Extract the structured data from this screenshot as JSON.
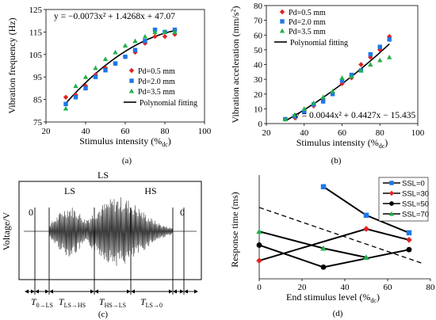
{
  "chart_data": [
    {
      "type": "scatter",
      "xlabel": "Stimulus intensity (%dc)",
      "ylabel": "Vibration frequency (Hz)",
      "xlim": [
        20,
        100
      ],
      "ylim": [
        75,
        125
      ],
      "xticks": [
        20,
        40,
        60,
        80,
        100
      ],
      "yticks": [
        75,
        85,
        95,
        105,
        115,
        125
      ],
      "equation": "y = −0.0073x² + 1.4268x + 47.07",
      "caption": "(a)",
      "legend_position": "center-right",
      "series": [
        {
          "name": "Pd=0.5 mm",
          "marker": "diamond",
          "color": "#e32222",
          "x": [
            30,
            35,
            40,
            45,
            50,
            55,
            60,
            65,
            70,
            75,
            80,
            85
          ],
          "y": [
            86,
            87,
            91,
            96,
            99,
            101,
            104,
            106,
            110,
            113,
            113,
            114
          ]
        },
        {
          "name": "Pd=2.0 mm",
          "marker": "square",
          "color": "#1f77e8",
          "x": [
            30,
            35,
            40,
            45,
            50,
            55,
            60,
            65,
            70,
            75,
            80,
            85
          ],
          "y": [
            83,
            86,
            90,
            95,
            98,
            101,
            104,
            107,
            111,
            116,
            115,
            116
          ]
        },
        {
          "name": "Pd=3.5 mm",
          "marker": "triangle",
          "color": "#22b14c",
          "x": [
            30,
            35,
            40,
            45,
            50,
            55,
            60,
            65,
            70,
            75,
            80,
            85
          ],
          "y": [
            81,
            91,
            95,
            99,
            103,
            106,
            109,
            111,
            113,
            115,
            115,
            115
          ]
        }
      ],
      "fit": {
        "name": "Polynomial fitting",
        "a": -0.0073,
        "b": 1.4268,
        "c": 47.07,
        "x_from": 30,
        "x_to": 85
      }
    },
    {
      "type": "scatter",
      "xlabel": "Stimulus intensity (%dc)",
      "ylabel": "Vibration acceleration (mm/s²)",
      "xlim": [
        20,
        100
      ],
      "ylim": [
        0,
        80
      ],
      "xticks": [
        20,
        40,
        60,
        80,
        100
      ],
      "yticks": [
        0,
        10,
        20,
        30,
        40,
        50,
        60,
        70,
        80
      ],
      "equation": "y = 0.0044x² + 0.4427x − 15.435",
      "caption": "(b)",
      "legend_position": "top-left",
      "series": [
        {
          "name": "Pd=0.5 mm",
          "marker": "diamond",
          "color": "#e32222",
          "x": [
            30,
            35,
            40,
            45,
            50,
            55,
            60,
            65,
            70,
            75,
            80,
            85
          ],
          "y": [
            3,
            4,
            8,
            12,
            16,
            21,
            27,
            31,
            40,
            45,
            50,
            59
          ]
        },
        {
          "name": "Pd=2.0 mm",
          "marker": "square",
          "color": "#1f77e8",
          "x": [
            30,
            35,
            40,
            45,
            50,
            55,
            60,
            65,
            70,
            75,
            80,
            85
          ],
          "y": [
            3,
            5,
            8,
            13,
            15,
            20,
            29,
            33,
            36,
            47,
            52,
            57
          ]
        },
        {
          "name": "Pd=3.5 mm",
          "marker": "triangle",
          "color": "#22b14c",
          "x": [
            30,
            35,
            40,
            45,
            50,
            55,
            60,
            65,
            70,
            75,
            80,
            85
          ],
          "y": [
            3,
            6,
            10,
            14,
            18,
            22,
            31,
            32,
            36,
            40,
            43,
            45
          ]
        }
      ],
      "fit": {
        "name": "Polynomial fitting",
        "a": 0.0044,
        "b": 0.4427,
        "c": -15.435,
        "x_from": 30,
        "x_to": 85
      }
    },
    {
      "type": "line",
      "description_labels": {
        "top": "LS",
        "ls_left": "LS",
        "hs_right": "HS",
        "zero_left": "0",
        "zero_right": "0"
      },
      "ylabel": "Voltage/V",
      "intervals": [
        "T0→LS",
        "TLS→HS",
        "THS→LS",
        "TLS→0"
      ],
      "caption": "(c)"
    },
    {
      "type": "line",
      "xlabel": "End stimulus level (%dc)",
      "ylabel": "Response time (ms)",
      "xlim": [
        0,
        80
      ],
      "ylim": [
        20,
        180
      ],
      "xticks": [
        0,
        20,
        40,
        60,
        80
      ],
      "caption": "(d)",
      "legend_position": "top-right",
      "series": [
        {
          "name": "SSL=0",
          "marker": "square",
          "color": "#1f77e8",
          "x": [
            30,
            50,
            70
          ],
          "y": [
            162,
            118,
            91
          ]
        },
        {
          "name": "SSL=30",
          "marker": "diamond",
          "color": "#e32222",
          "x": [
            0,
            50,
            70
          ],
          "y": [
            48,
            97,
            80
          ]
        },
        {
          "name": "SSL=50",
          "marker": "circle",
          "color": "#000000",
          "x": [
            0,
            30,
            70
          ],
          "y": [
            72,
            38,
            65
          ]
        },
        {
          "name": "SSL=70",
          "marker": "triangle",
          "color": "#22b14c",
          "x": [
            0,
            30,
            50
          ],
          "y": [
            93,
            67,
            53
          ]
        }
      ],
      "trend": {
        "x": [
          0,
          77
        ],
        "y": [
          130,
          43
        ]
      }
    }
  ]
}
